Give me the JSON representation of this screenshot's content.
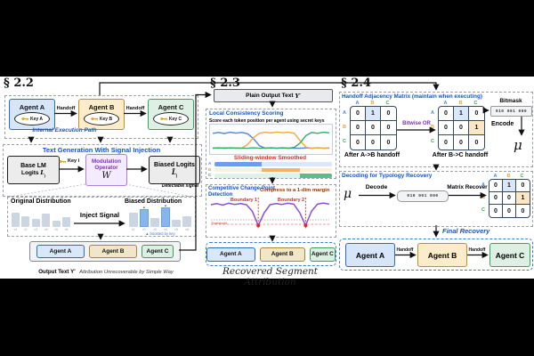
{
  "colors": {
    "labels": [
      "#4a86e8",
      "#e8a33d",
      "#34a853"
    ],
    "accent": "#1155CC",
    "red": "#D93025",
    "maroon": "#993300",
    "purple": "#7D2FBF",
    "curve": "#8A4FD8"
  },
  "p22": {
    "section": "§ 2.2",
    "agents": [
      {
        "label": "Agent A",
        "key": "Key A"
      },
      {
        "label": "Agent B",
        "key": "Key B"
      },
      {
        "label": "Agent C",
        "key": "Key C"
      }
    ],
    "handoff": "Handoff",
    "internal_path": "Internal Execution Path",
    "gen": {
      "title": "Text Generation With Signal Injection",
      "base_line1": "Base LM",
      "base_line2": "Logits",
      "base_sym": "L",
      "base_sub": "j",
      "key_i": "Key i",
      "mod_line1": "Modulation",
      "mod_line2": "Operator",
      "mod_sym": "W",
      "biased_line1": "Biased Logits",
      "biased_sym": "L̃",
      "biased_sub": "j",
      "detectable": "Detectable signal"
    },
    "dist": {
      "orig_title": "Original Distribution",
      "biased_title": "Biased Distribution",
      "inject": "Inject Signal",
      "marker": "▲",
      "orig_bars": {
        "values": [
          0.78,
          0.6,
          0.45,
          0.72,
          0.35,
          0.55
        ],
        "boosted": []
      },
      "biased_bars": {
        "values": [
          0.7,
          0.88,
          0.42,
          0.97,
          0.36,
          0.52
        ],
        "boosted": [
          1,
          3
        ]
      },
      "tick_labels": [
        "v1",
        "v2",
        "v3",
        "v4",
        "v5",
        "v6"
      ],
      "note": "▲ boosted by key"
    },
    "output": {
      "chips": [
        "Agent A",
        "Agent B",
        "Agent C"
      ],
      "caption_bold": "Output Text Y′",
      "caption_italic": "Attribution Unrecoverable by Simple Way"
    }
  },
  "p23": {
    "section": "§ 2.3",
    "plain_label": "Plain Output Text",
    "plain_sym": "Y′",
    "scoring": {
      "title": "Local Consistency Scoring",
      "subtitle": "Score each token position per agent using secret keys",
      "smoothed": "Sliding-window Smoothed",
      "series": [
        {
          "name": "Agent A score",
          "color": "#4a86e8",
          "values": [
            0.8,
            0.84,
            0.79,
            0.85,
            0.81,
            0.84,
            0.78,
            0.55,
            0.22,
            0.1,
            0.12,
            0.1,
            0.12,
            0.1,
            0.11,
            0.1,
            0.12,
            0.1,
            0.12,
            0.1,
            0.11
          ]
        },
        {
          "name": "Agent B score",
          "color": "#f3a93c",
          "values": [
            0.12,
            0.1,
            0.13,
            0.1,
            0.12,
            0.11,
            0.28,
            0.6,
            0.8,
            0.85,
            0.82,
            0.86,
            0.83,
            0.85,
            0.8,
            0.45,
            0.15,
            0.1,
            0.12,
            0.1,
            0.12
          ]
        },
        {
          "name": "Agent C score",
          "color": "#2fae68",
          "values": [
            0.1,
            0.12,
            0.1,
            0.12,
            0.1,
            0.11,
            0.1,
            0.12,
            0.1,
            0.11,
            0.12,
            0.1,
            0.12,
            0.1,
            0.14,
            0.35,
            0.7,
            0.84,
            0.8,
            0.85,
            0.82
          ]
        }
      ],
      "rows": [
        {
          "label": "A",
          "color": "#4a86e8",
          "active": "#6d9eeb",
          "pale": "#dbe7fb",
          "on_from": 0,
          "on_to": 0.4
        },
        {
          "label": "B",
          "color": "#e8a33d",
          "active": "#f6b26b",
          "pale": "#fdf0d9",
          "on_from": 0.4,
          "on_to": 0.73
        },
        {
          "label": "C",
          "color": "#34a853",
          "active": "#5bbd8b",
          "pale": "#def2e7",
          "on_from": 0.73,
          "on_to": 1
        }
      ]
    },
    "changepoint": {
      "title1": "Competitive Change-Point",
      "title2": "Detection",
      "compress": "Compress to a 1-dim margin",
      "b1": "Boundary 1",
      "b2": "Boundary 2",
      "threshold": "Threshold",
      "curve": [
        0.78,
        0.82,
        0.77,
        0.83,
        0.79,
        0.82,
        0.78,
        0.55,
        0.05,
        0.5,
        0.78,
        0.82,
        0.79,
        0.83,
        0.8,
        0.5,
        0.05,
        0.55,
        0.8,
        0.84,
        0.8
      ],
      "boundaries": [
        0.4,
        0.8
      ]
    },
    "recovered": {
      "chips": [
        "Agent A",
        "Agent B",
        "Agent C"
      ],
      "caption": "Recovered Segment Attribution"
    }
  },
  "p24": {
    "section": "§ 2.4",
    "adjacency": {
      "title": "Handoff Adjacency Matrix (maintain when executing)",
      "headers": [
        "A",
        "B",
        "C"
      ],
      "m1": {
        "values": [
          [
            0,
            1,
            0
          ],
          [
            0,
            0,
            0
          ],
          [
            0,
            0,
            0
          ]
        ],
        "highlights": [
          [
            0,
            1,
            "blue"
          ]
        ],
        "caption": "After A->B handoff"
      },
      "m2": {
        "values": [
          [
            0,
            1,
            0
          ],
          [
            0,
            0,
            1
          ],
          [
            0,
            0,
            0
          ]
        ],
        "highlights": [
          [
            0,
            1,
            "blue"
          ],
          [
            1,
            2,
            "orange"
          ]
        ],
        "caption": "After B->C handoff"
      },
      "bitwise_or": "Bitwise OR",
      "bitmask_label": "Bitmask",
      "bitmask": "010 001 000",
      "encode": "Encode",
      "mu": "μ"
    },
    "decoding": {
      "title": "Decoding for Typology Recovery",
      "mu": "μ",
      "decode": "Decode",
      "bitmask": "010 001 000",
      "recover": "Matrix Recover",
      "m3": {
        "values": [
          [
            0,
            1,
            0
          ],
          [
            0,
            0,
            1
          ],
          [
            0,
            0,
            0
          ]
        ],
        "highlights": [
          [
            0,
            1,
            "blue"
          ],
          [
            1,
            2,
            "orange"
          ]
        ]
      }
    },
    "final_label": "Final Recovery",
    "final_agents": [
      "Agent A",
      "Agent B",
      "Agent C"
    ],
    "handoff": "Handoff"
  }
}
